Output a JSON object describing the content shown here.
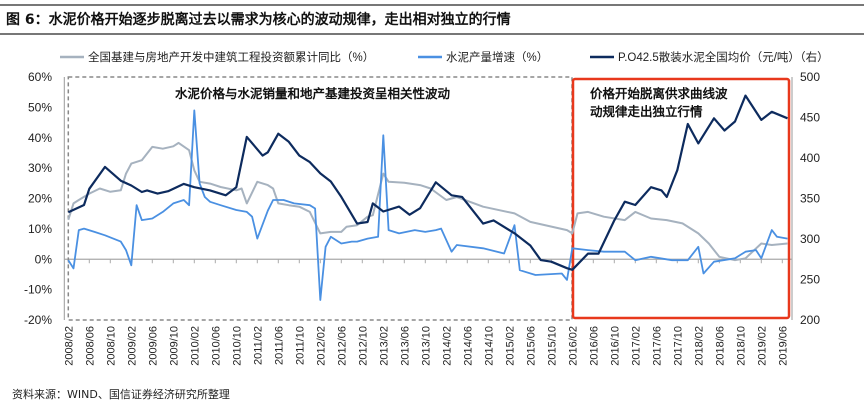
{
  "title": "图 6：水泥价格开始逐步脱离过去以需求为核心的波动规律，走出相对独立的行情",
  "source": "资料来源：WIND、国信证券经济研究所整理",
  "chart_data": {
    "type": "line",
    "x_ticks": [
      "2008/02",
      "2008/06",
      "2008/10",
      "2009/02",
      "2009/06",
      "2009/10",
      "2010/02",
      "2010/06",
      "2010/10",
      "2011/02",
      "2011/06",
      "2011/10",
      "2012/02",
      "2012/06",
      "2012/10",
      "2013/02",
      "2013/06",
      "2013/10",
      "2014/02",
      "2014/06",
      "2014/10",
      "2015/02",
      "2015/06",
      "2015/10",
      "2016/02",
      "2016/06",
      "2016/10",
      "2017/02",
      "2017/06",
      "2017/10",
      "2018/02",
      "2018/06",
      "2018/10",
      "2019/02",
      "2019/06"
    ],
    "y_left": {
      "ticks": [
        "60%",
        "50%",
        "40%",
        "30%",
        "20%",
        "10%",
        "0%",
        "-10%",
        "-20%"
      ],
      "range": [
        -20,
        60
      ]
    },
    "y_right": {
      "ticks": [
        "500",
        "450",
        "400",
        "350",
        "300",
        "250",
        "200"
      ],
      "range": [
        200,
        500
      ]
    },
    "annotations": [
      "水泥价格与水泥销量和地产基建投资呈相关性波动",
      "价格开始脱离供求曲线波",
      "动规律走出独立行情"
    ],
    "series": [
      {
        "name": "全国基建与房地产开发中建筑工程投资额累计同比（%）",
        "axis": "left",
        "color": "#a6b2bf",
        "points": [
          [
            "2008/02",
            13
          ],
          [
            "2008/03",
            18.4
          ],
          [
            "2008/04",
            19.5
          ],
          [
            "2008/06",
            21.6
          ],
          [
            "2008/08",
            23.3
          ],
          [
            "2008/10",
            22.2
          ],
          [
            "2008/12",
            22.7
          ],
          [
            "2009/01",
            28.2
          ],
          [
            "2009/02",
            31.5
          ],
          [
            "2009/04",
            32.6
          ],
          [
            "2009/06",
            37
          ],
          [
            "2009/08",
            36.4
          ],
          [
            "2009/10",
            37.2
          ],
          [
            "2009/11",
            38.3
          ],
          [
            "2010/01",
            35.9
          ],
          [
            "2010/02",
            29.3
          ],
          [
            "2010/03",
            25.5
          ],
          [
            "2010/05",
            24.9
          ],
          [
            "2010/07",
            23.8
          ],
          [
            "2010/10",
            22.7
          ],
          [
            "2010/11",
            23.3
          ],
          [
            "2010/12",
            18.4
          ],
          [
            "2011/02",
            25.5
          ],
          [
            "2011/04",
            24.4
          ],
          [
            "2011/05",
            23.3
          ],
          [
            "2011/06",
            18.4
          ],
          [
            "2011/08",
            17.8
          ],
          [
            "2011/10",
            17.3
          ],
          [
            "2011/12",
            15.6
          ],
          [
            "2012/02",
            8.5
          ],
          [
            "2012/04",
            9
          ],
          [
            "2012/06",
            9
          ],
          [
            "2012/07",
            10.7
          ],
          [
            "2012/09",
            11.2
          ],
          [
            "2012/11",
            14
          ],
          [
            "2012/12",
            14.5
          ],
          [
            "2013/02",
            28.2
          ],
          [
            "2013/03",
            25.5
          ],
          [
            "2013/06",
            25.2
          ],
          [
            "2013/09",
            24.4
          ],
          [
            "2013/11",
            23.3
          ],
          [
            "2014/02",
            19.5
          ],
          [
            "2014/04",
            20.5
          ],
          [
            "2014/09",
            17.3
          ],
          [
            "2015/03",
            15.1
          ],
          [
            "2015/06",
            12.3
          ],
          [
            "2016/01",
            9.6
          ],
          [
            "2016/02",
            8.5
          ],
          [
            "2016/03",
            15.1
          ],
          [
            "2016/05",
            15.6
          ],
          [
            "2016/08",
            14
          ],
          [
            "2016/12",
            12.9
          ],
          [
            "2017/02",
            15.6
          ],
          [
            "2017/05",
            13.4
          ],
          [
            "2017/08",
            12.9
          ],
          [
            "2017/11",
            11.8
          ],
          [
            "2018/02",
            8.5
          ],
          [
            "2018/04",
            5.2
          ],
          [
            "2018/06",
            0.8
          ],
          [
            "2018/09",
            -0.3
          ],
          [
            "2018/11",
            0.3
          ],
          [
            "2019/02",
            5.2
          ],
          [
            "2019/04",
            4.7
          ],
          [
            "2019/07",
            5.2
          ]
        ]
      },
      {
        "name": "水泥产量增速（%）",
        "axis": "left",
        "color": "#4a90e2",
        "points": [
          [
            "2008/02",
            -0.3
          ],
          [
            "2008/03",
            -3
          ],
          [
            "2008/04",
            9.6
          ],
          [
            "2008/05",
            10.1
          ],
          [
            "2008/07",
            9
          ],
          [
            "2008/09",
            7.9
          ],
          [
            "2008/12",
            5.8
          ],
          [
            "2009/01",
            3
          ],
          [
            "2009/02",
            -2
          ],
          [
            "2009/03",
            17.8
          ],
          [
            "2009/04",
            12.9
          ],
          [
            "2009/06",
            13.4
          ],
          [
            "2009/08",
            15.6
          ],
          [
            "2009/10",
            18.4
          ],
          [
            "2009/12",
            19.5
          ],
          [
            "2010/01",
            17.8
          ],
          [
            "2010/02",
            49
          ],
          [
            "2010/03",
            25
          ],
          [
            "2010/04",
            20.5
          ],
          [
            "2010/05",
            18.9
          ],
          [
            "2010/07",
            17.8
          ],
          [
            "2010/10",
            16.2
          ],
          [
            "2010/12",
            15.6
          ],
          [
            "2011/01",
            14
          ],
          [
            "2011/02",
            6.8
          ],
          [
            "2011/04",
            16
          ],
          [
            "2011/05",
            19.5
          ],
          [
            "2011/07",
            19.5
          ],
          [
            "2011/09",
            18.4
          ],
          [
            "2011/12",
            17.8
          ],
          [
            "2012/01",
            16.7
          ],
          [
            "2012/02",
            -13.4
          ],
          [
            "2012/03",
            4.1
          ],
          [
            "2012/04",
            7.4
          ],
          [
            "2012/06",
            5.2
          ],
          [
            "2012/08",
            5.8
          ],
          [
            "2012/09",
            5.8
          ],
          [
            "2012/11",
            6.8
          ],
          [
            "2013/01",
            7.4
          ],
          [
            "2013/02",
            40.8
          ],
          [
            "2013/03",
            9.6
          ],
          [
            "2013/05",
            8.5
          ],
          [
            "2013/08",
            9.6
          ],
          [
            "2013/10",
            9
          ],
          [
            "2013/12",
            9.6
          ],
          [
            "2014/01",
            10.1
          ],
          [
            "2014/03",
            2.5
          ],
          [
            "2014/04",
            4.7
          ],
          [
            "2014/09",
            3.6
          ],
          [
            "2015/01",
            1.9
          ],
          [
            "2015/03",
            11.2
          ],
          [
            "2015/04",
            -3.6
          ],
          [
            "2015/07",
            -5.2
          ],
          [
            "2015/12",
            -4.7
          ],
          [
            "2016/01",
            -6.8
          ],
          [
            "2016/02",
            3.6
          ],
          [
            "2016/05",
            3
          ],
          [
            "2016/08",
            2.5
          ],
          [
            "2016/12",
            2.5
          ],
          [
            "2017/02",
            -0.3
          ],
          [
            "2017/05",
            0.8
          ],
          [
            "2017/09",
            -0.3
          ],
          [
            "2017/12",
            -0.3
          ],
          [
            "2018/02",
            4.1
          ],
          [
            "2018/03",
            -4.7
          ],
          [
            "2018/05",
            -0.8
          ],
          [
            "2018/09",
            0.3
          ],
          [
            "2018/11",
            2.5
          ],
          [
            "2019/01",
            3
          ],
          [
            "2019/02",
            0.3
          ],
          [
            "2019/04",
            9.6
          ],
          [
            "2019/05",
            7.4
          ],
          [
            "2019/07",
            6.8
          ]
        ]
      },
      {
        "name": "P.O42.5散装水泥全国均价（元/吨）（右）",
        "axis": "right",
        "color": "#0d2b5e",
        "points": [
          [
            "2008/02",
            333
          ],
          [
            "2008/05",
            342
          ],
          [
            "2008/06",
            362
          ],
          [
            "2008/09",
            389
          ],
          [
            "2008/12",
            372
          ],
          [
            "2009/02",
            366
          ],
          [
            "2009/04",
            358
          ],
          [
            "2009/05",
            360
          ],
          [
            "2009/07",
            356
          ],
          [
            "2009/09",
            359
          ],
          [
            "2009/12",
            368
          ],
          [
            "2010/02",
            364
          ],
          [
            "2010/05",
            360
          ],
          [
            "2010/08",
            354
          ],
          [
            "2010/10",
            364
          ],
          [
            "2010/12",
            426
          ],
          [
            "2011/03",
            403
          ],
          [
            "2011/04",
            407
          ],
          [
            "2011/06",
            430
          ],
          [
            "2011/08",
            420
          ],
          [
            "2011/10",
            403
          ],
          [
            "2011/12",
            395
          ],
          [
            "2012/02",
            381
          ],
          [
            "2012/04",
            371
          ],
          [
            "2012/06",
            352
          ],
          [
            "2012/09",
            319
          ],
          [
            "2012/11",
            321
          ],
          [
            "2012/12",
            344
          ],
          [
            "2013/02",
            334
          ],
          [
            "2013/05",
            340
          ],
          [
            "2013/07",
            330
          ],
          [
            "2013/09",
            338
          ],
          [
            "2013/12",
            370
          ],
          [
            "2014/03",
            354
          ],
          [
            "2014/05",
            352
          ],
          [
            "2014/09",
            319
          ],
          [
            "2014/11",
            323
          ],
          [
            "2015/03",
            307
          ],
          [
            "2015/06",
            292
          ],
          [
            "2015/08",
            274
          ],
          [
            "2015/10",
            272
          ],
          [
            "2016/01",
            264
          ],
          [
            "2016/02",
            262
          ],
          [
            "2016/05",
            282
          ],
          [
            "2016/07",
            282
          ],
          [
            "2016/10",
            323
          ],
          [
            "2016/12",
            346
          ],
          [
            "2017/02",
            342
          ],
          [
            "2017/05",
            364
          ],
          [
            "2017/07",
            360
          ],
          [
            "2017/08",
            352
          ],
          [
            "2017/10",
            385
          ],
          [
            "2017/12",
            442
          ],
          [
            "2018/02",
            418
          ],
          [
            "2018/05",
            449
          ],
          [
            "2018/07",
            434
          ],
          [
            "2018/09",
            445
          ],
          [
            "2018/11",
            477
          ],
          [
            "2019/02",
            447
          ],
          [
            "2019/04",
            457
          ],
          [
            "2019/07",
            449
          ]
        ]
      }
    ]
  }
}
